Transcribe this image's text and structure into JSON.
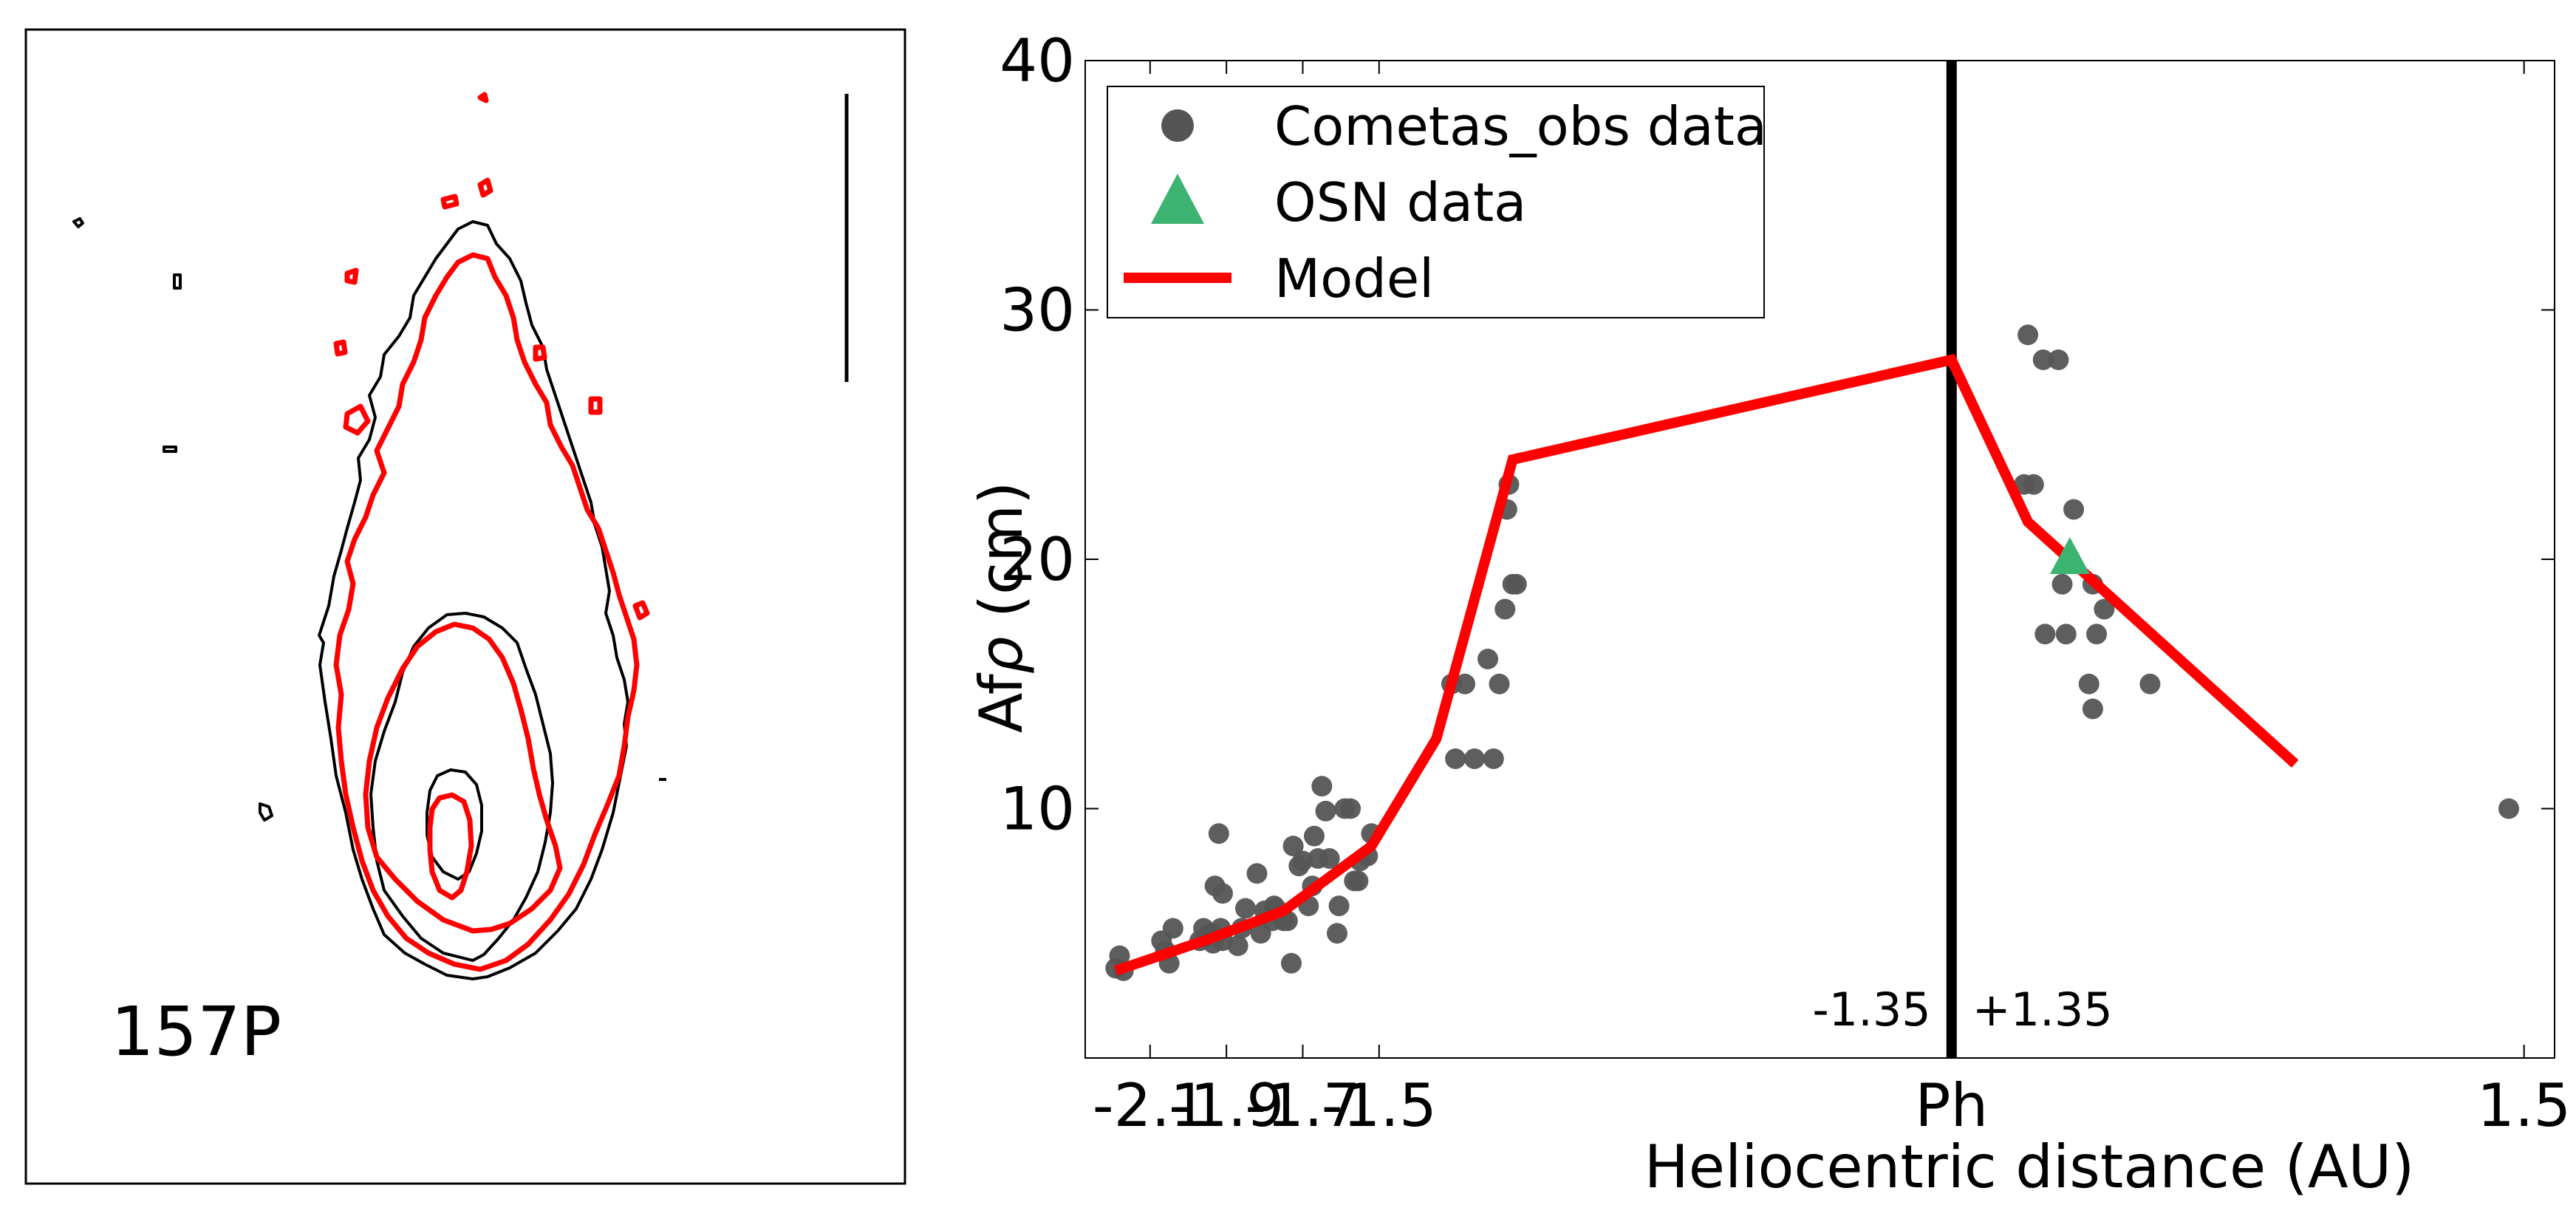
{
  "panel_label": "157P",
  "chart_data": {
    "type": "scatter",
    "xlabel": "Heliocentric distance (AU)",
    "ylabel": "Afρ (cm)",
    "ylabel_prefix": "Af",
    "ylabel_symbol": "ρ",
    "ylabel_suffix": " (cm)",
    "xlim": [
      -2.27,
      1.58
    ],
    "ylim": [
      0,
      40
    ],
    "x_ticks": [
      {
        "value": -2.1,
        "label": "-2.1"
      },
      {
        "value": -1.9,
        "label": "-1.9"
      },
      {
        "value": -1.7,
        "label": "-1.7"
      },
      {
        "value": -1.5,
        "label": "-1.5"
      },
      {
        "value": 0,
        "label": "Ph"
      },
      {
        "value": 1.5,
        "label": "1.5"
      }
    ],
    "y_ticks": [
      {
        "value": 10,
        "label": "10"
      },
      {
        "value": 20,
        "label": "20"
      },
      {
        "value": 30,
        "label": "30"
      },
      {
        "value": 40,
        "label": "40"
      }
    ],
    "grid": false,
    "perihelion_line": {
      "x": 0,
      "left_label": "-1.35",
      "right_label": "+1.35",
      "color": "#000000"
    },
    "legend": {
      "placement": "top-left",
      "entries": [
        {
          "label": "Cometas_obs data",
          "marker": "circle",
          "color": "#555555"
        },
        {
          "label": "OSN data",
          "marker": "triangle",
          "color": "#3cb371"
        },
        {
          "label": "Model",
          "marker": "line",
          "color": "#ff0000"
        }
      ]
    },
    "series": [
      {
        "name": "Cometas_obs data",
        "marker": "circle",
        "color": "#555555",
        "points": [
          [
            -2.19,
            3.6
          ],
          [
            -2.18,
            4.1
          ],
          [
            -2.17,
            3.5
          ],
          [
            -2.07,
            4.7
          ],
          [
            -2.06,
            4.3
          ],
          [
            -2.05,
            3.8
          ],
          [
            -2.04,
            5.2
          ],
          [
            -1.97,
            4.7
          ],
          [
            -1.96,
            5.2
          ],
          [
            -1.95,
            4.9
          ],
          [
            -1.94,
            5.0
          ],
          [
            -1.935,
            4.6
          ],
          [
            -1.93,
            6.9
          ],
          [
            -1.92,
            9.0
          ],
          [
            -1.915,
            5.2
          ],
          [
            -1.91,
            4.7
          ],
          [
            -1.91,
            6.6
          ],
          [
            -1.87,
            4.5
          ],
          [
            -1.86,
            5.2
          ],
          [
            -1.85,
            6.0
          ],
          [
            -1.82,
            7.4
          ],
          [
            -1.81,
            5.0
          ],
          [
            -1.8,
            5.9
          ],
          [
            -1.78,
            5.5
          ],
          [
            -1.775,
            6.1
          ],
          [
            -1.77,
            6.0
          ],
          [
            -1.75,
            5.5
          ],
          [
            -1.74,
            5.5
          ],
          [
            -1.73,
            3.8
          ],
          [
            -1.725,
            8.5
          ],
          [
            -1.71,
            7.7
          ],
          [
            -1.7,
            7.9
          ],
          [
            -1.685,
            6.1
          ],
          [
            -1.675,
            6.9
          ],
          [
            -1.67,
            8.9
          ],
          [
            -1.66,
            8.0
          ],
          [
            -1.65,
            10.9
          ],
          [
            -1.64,
            9.9
          ],
          [
            -1.63,
            8.0
          ],
          [
            -1.61,
            5.0
          ],
          [
            -1.605,
            6.1
          ],
          [
            -1.59,
            10.0
          ],
          [
            -1.575,
            10.0
          ],
          [
            -1.565,
            7.1
          ],
          [
            -1.555,
            7.1
          ],
          [
            -1.55,
            7.9
          ],
          [
            -1.53,
            8.1
          ],
          [
            -1.52,
            9.0
          ],
          [
            -1.31,
            15.0
          ],
          [
            -1.3,
            12.0
          ],
          [
            -1.275,
            15.0
          ],
          [
            -1.25,
            12.0
          ],
          [
            -1.215,
            16.0
          ],
          [
            -1.2,
            12.0
          ],
          [
            -1.185,
            15.0
          ],
          [
            -1.17,
            18.0
          ],
          [
            -1.165,
            22.0
          ],
          [
            -1.16,
            23.0
          ],
          [
            -1.15,
            19.0
          ],
          [
            -1.14,
            19.0
          ],
          [
            0.2,
            29.0
          ],
          [
            0.24,
            28.0
          ],
          [
            0.28,
            28.0
          ],
          [
            0.19,
            23.0
          ],
          [
            0.215,
            23.0
          ],
          [
            0.32,
            22.0
          ],
          [
            0.29,
            19.0
          ],
          [
            0.37,
            19.0
          ],
          [
            0.245,
            17.0
          ],
          [
            0.3,
            17.0
          ],
          [
            0.38,
            17.0
          ],
          [
            0.4,
            18.0
          ],
          [
            0.36,
            15.0
          ],
          [
            0.52,
            15.0
          ],
          [
            0.37,
            14.0
          ],
          [
            1.46,
            10.0
          ]
        ]
      },
      {
        "name": "OSN data",
        "marker": "triangle",
        "color": "#3cb371",
        "points": [
          [
            0.31,
            20.0
          ]
        ]
      },
      {
        "name": "Model",
        "marker": "line",
        "color": "#ff0000",
        "points": [
          [
            -2.19,
            3.5
          ],
          [
            -1.94,
            4.8
          ],
          [
            -1.75,
            5.9
          ],
          [
            -1.52,
            8.5
          ],
          [
            -1.35,
            12.8
          ],
          [
            -1.15,
            24.0
          ],
          [
            0,
            28.0
          ],
          [
            0.2,
            21.5
          ],
          [
            0.9,
            11.8
          ]
        ]
      }
    ]
  }
}
